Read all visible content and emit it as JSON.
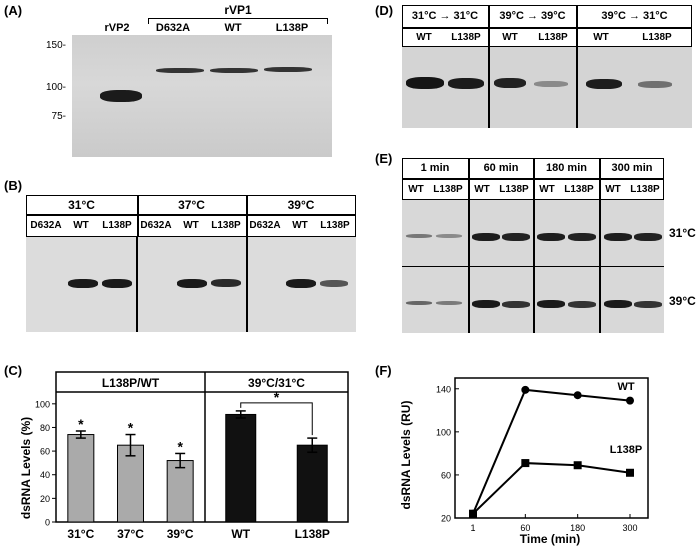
{
  "panelA": {
    "label": "(A)",
    "group_label": "rVP1",
    "lanes": [
      "rVP2",
      "D632A",
      "WT",
      "L138P"
    ],
    "markers": [
      "150-",
      "100-",
      "75-"
    ]
  },
  "panelB": {
    "label": "(B)",
    "temps": [
      "31°C",
      "37°C",
      "39°C"
    ],
    "lanes": [
      "D632A",
      "WT",
      "L138P"
    ]
  },
  "panelC": {
    "label": "(C)",
    "chart_data": {
      "type": "bar",
      "ylabel": "dsRNA Levels (%)",
      "ylim": [
        0,
        110
      ],
      "yticks": [
        0,
        20,
        40,
        60,
        80,
        100
      ],
      "groups": [
        {
          "title": "L138P/WT",
          "categories": [
            "31°C",
            "37°C",
            "39°C"
          ],
          "values": [
            74,
            65,
            52
          ],
          "errors": [
            3,
            9,
            6
          ],
          "color": "#aaaaaa"
        },
        {
          "title": "39°C/31°C",
          "categories": [
            "WT",
            "L138P"
          ],
          "values": [
            91,
            65
          ],
          "errors": [
            3,
            6
          ],
          "color": "#111111"
        }
      ],
      "significance": "*"
    }
  },
  "panelD": {
    "label": "(D)",
    "conditions": [
      "31°C → 31°C",
      "39°C → 39°C",
      "39°C → 31°C"
    ],
    "lanes": [
      "WT",
      "L138P"
    ]
  },
  "panelE": {
    "label": "(E)",
    "times": [
      "1 min",
      "60 min",
      "180 min",
      "300 min"
    ],
    "lanes": [
      "WT",
      "L138P"
    ],
    "rows": [
      "31°C",
      "39°C"
    ]
  },
  "panelF": {
    "label": "(F)",
    "chart_data": {
      "type": "line",
      "xlabel": "Time (min)",
      "ylabel": "dsRNA Levels (RU)",
      "x": [
        1,
        60,
        180,
        300
      ],
      "xticks": [
        "1",
        "60",
        "180",
        "300"
      ],
      "ylim": [
        20,
        150
      ],
      "yticks": [
        20,
        60,
        100,
        140
      ],
      "series": [
        {
          "name": "WT",
          "values": [
            24,
            139,
            134,
            129
          ],
          "marker": "circle"
        },
        {
          "name": "L138P",
          "values": [
            24,
            71,
            69,
            62
          ],
          "marker": "square"
        }
      ]
    }
  }
}
